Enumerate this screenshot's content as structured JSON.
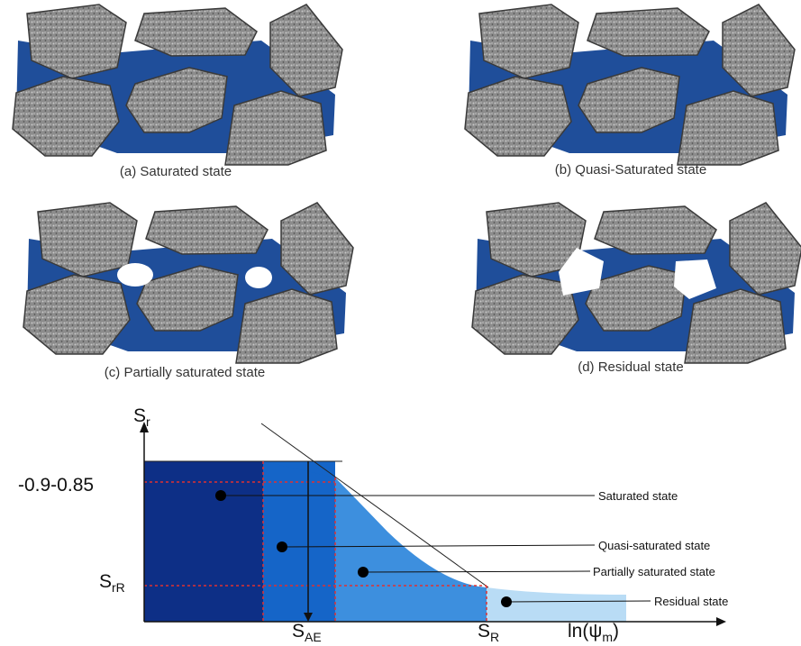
{
  "panels": [
    {
      "caption": "(a) Saturated state"
    },
    {
      "caption": "(b) Quasi-Saturated state"
    },
    {
      "caption": "(c) Partially saturated state"
    },
    {
      "caption": "(d) Residual state"
    }
  ],
  "curve": {
    "y_axis_label": {
      "main": "S",
      "sub": "r"
    },
    "y_level_high": "-0.9-0.85",
    "y_level_residual": {
      "main": "S",
      "sub": "rR"
    },
    "x_air_entry": {
      "main": "S",
      "sub": "AE"
    },
    "x_residual": {
      "main": "S",
      "sub": "R"
    },
    "x_axis_label": {
      "main": "ln(ψ",
      "sub": "m",
      "close": ")"
    },
    "annotations": [
      "Saturated state",
      "Quasi-saturated state",
      "Partially saturated state",
      "Residual state"
    ]
  }
}
